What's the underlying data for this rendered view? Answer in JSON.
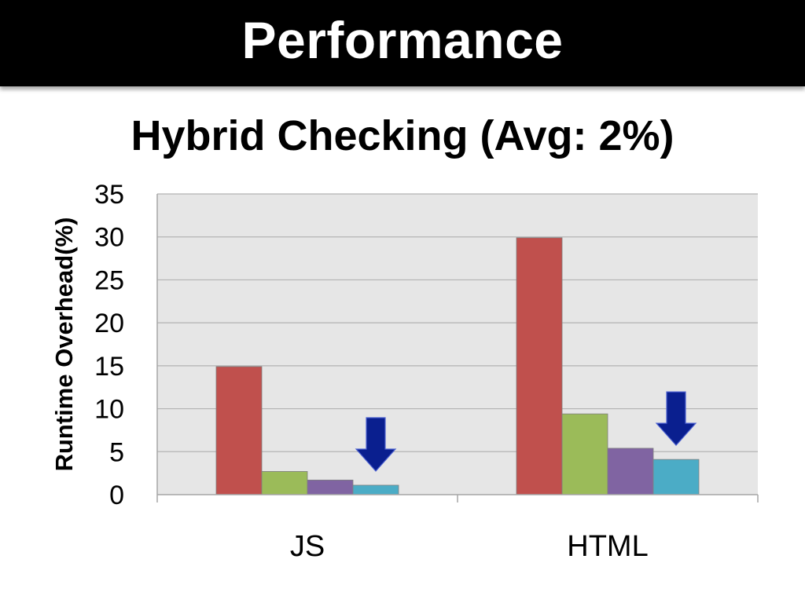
{
  "slide": {
    "title": "Performance"
  },
  "chart_data": {
    "type": "bar",
    "title": "Hybrid Checking (Avg: 2%)",
    "xlabel": "",
    "ylabel": "Runtime Overhead(%)",
    "ylim": [
      0,
      35
    ],
    "yticks": [
      0,
      5,
      10,
      15,
      20,
      25,
      30,
      35
    ],
    "categories": [
      "JS",
      "HTML"
    ],
    "grid": true,
    "legend": "none",
    "series": [
      {
        "values": [
          14.9,
          29.9
        ],
        "color": "#c0504d"
      },
      {
        "values": [
          2.7,
          9.4
        ],
        "color": "#9bbb59"
      },
      {
        "values": [
          1.7,
          5.4
        ],
        "color": "#8064a2"
      },
      {
        "values": [
          1.1,
          4.1
        ],
        "color": "#4bacc6"
      }
    ],
    "annotations": [
      {
        "type": "arrow-down",
        "category": "JS",
        "series_index": 3,
        "color": "#0a1f8f"
      },
      {
        "type": "arrow-down",
        "category": "HTML",
        "series_index": 3,
        "color": "#0a1f8f"
      }
    ],
    "colors": {
      "plot_background": "#e6e6e6",
      "gridline": "#b3b3b3",
      "axis": "#a6a6a6"
    }
  }
}
